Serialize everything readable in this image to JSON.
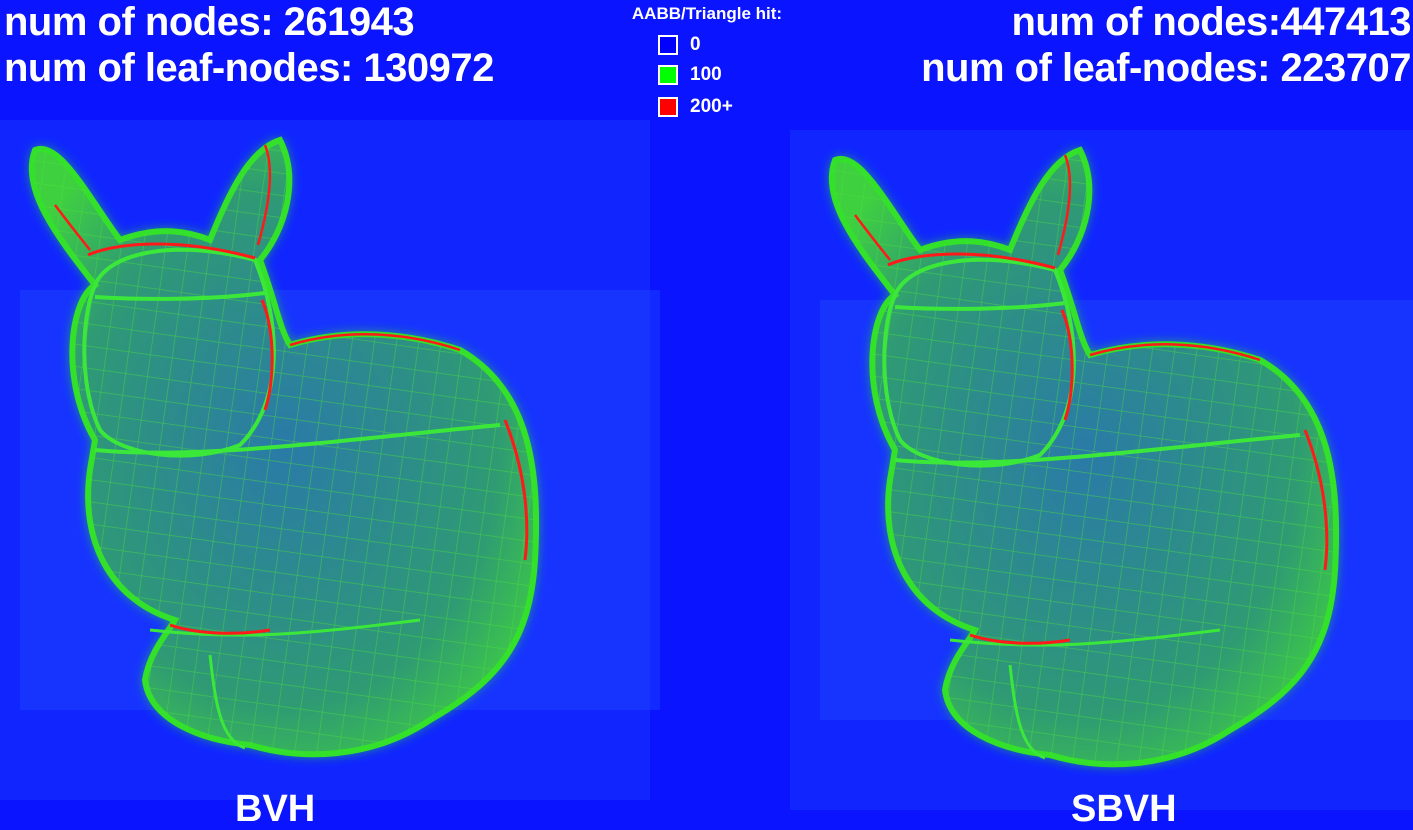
{
  "left": {
    "nodes_text": "num of nodes: 261943",
    "leaf_text": "num of leaf-nodes: 130972",
    "label": "BVH"
  },
  "right": {
    "nodes_text": "num of nodes:447413",
    "leaf_text": "num of leaf-nodes: 223707",
    "label": "SBVH"
  },
  "legend": {
    "title": "AABB/Triangle hit:",
    "items": [
      {
        "label": "0",
        "color": "#0000ff"
      },
      {
        "label": "100",
        "color": "#00ff00"
      },
      {
        "label": "200+",
        "color": "#ff0000"
      }
    ]
  },
  "colors": {
    "background": "#0a14ff",
    "surface_green": "#22e01a",
    "interior": "#1a6fb0",
    "hot_edge": "#ff1a1a"
  }
}
